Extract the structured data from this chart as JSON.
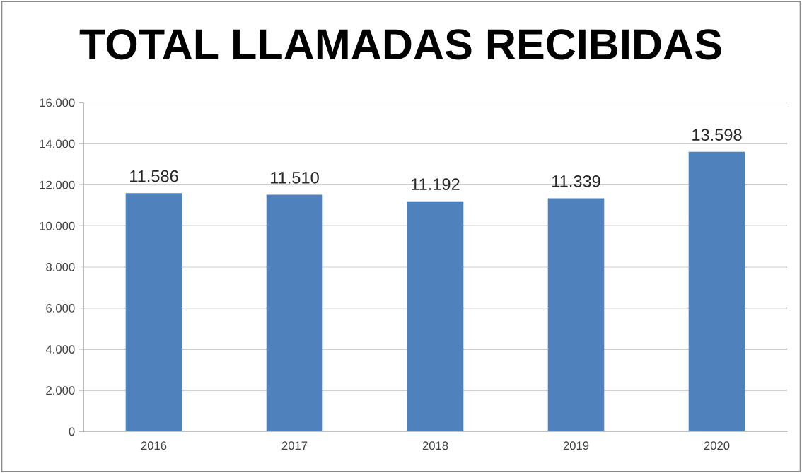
{
  "chart_data": {
    "type": "bar",
    "title": "TOTAL LLAMADAS RECIBIDAS",
    "categories": [
      "2016",
      "2017",
      "2018",
      "2019",
      "2020"
    ],
    "values": [
      11586,
      11510,
      11192,
      11339,
      13598
    ],
    "value_labels": [
      "11.586",
      "11.510",
      "11.192",
      "11.339",
      "13.598"
    ],
    "color": "#4f81bd",
    "ylim": [
      0,
      16000
    ],
    "yticks": [
      {
        "value": 0,
        "label": "0"
      },
      {
        "value": 2000,
        "label": "2.000"
      },
      {
        "value": 4000,
        "label": "4.000"
      },
      {
        "value": 6000,
        "label": "6.000"
      },
      {
        "value": 8000,
        "label": "8.000"
      },
      {
        "value": 10000,
        "label": "10.000"
      },
      {
        "value": 12000,
        "label": "12.000"
      },
      {
        "value": 14000,
        "label": "14.000"
      },
      {
        "value": 16000,
        "label": "16.000"
      }
    ],
    "grid": "y",
    "legend": false
  }
}
